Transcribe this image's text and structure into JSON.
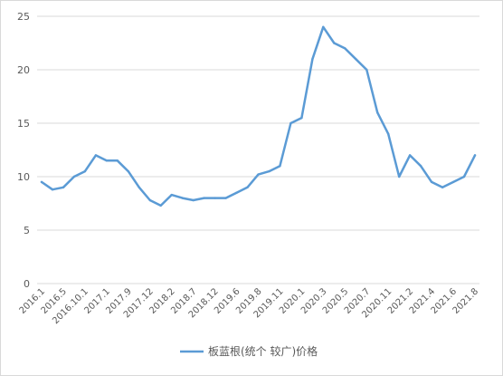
{
  "chart_data": {
    "type": "line",
    "title": "",
    "xlabel": "",
    "ylabel": "",
    "ylim": [
      0,
      25
    ],
    "yticks": [
      0,
      5,
      10,
      15,
      20,
      25
    ],
    "grid": true,
    "legend_position": "bottom",
    "series_color": "#5b9bd5",
    "x": [
      "2016.1",
      "",
      "2016.5",
      "",
      "2016.10.1",
      "",
      "2017.1",
      "",
      "2017.9",
      "",
      "2017.12",
      "",
      "2018.2",
      "",
      "2018.7",
      "",
      "2018.12",
      "",
      "2019.6",
      "",
      "2019.8",
      "",
      "2019.11",
      "",
      "2020.1",
      "",
      "2020.3",
      "",
      "2020.5",
      "",
      "2020.7",
      "",
      "2020.11",
      "",
      "2021.2",
      "",
      "2021.4",
      "",
      "2021.6",
      "",
      "2021.8"
    ],
    "series": [
      {
        "name": "板蓝根(统个 较广)价格",
        "values": [
          9.5,
          8.8,
          9.0,
          10.0,
          10.5,
          12.0,
          11.5,
          11.5,
          10.5,
          9.0,
          7.8,
          7.3,
          8.3,
          8.0,
          7.8,
          8.0,
          8.0,
          8.0,
          8.5,
          9.0,
          10.2,
          10.5,
          11.0,
          15.0,
          15.5,
          21.0,
          24.0,
          22.5,
          22.0,
          21.0,
          20.0,
          16.0,
          14.0,
          10.0,
          12.0,
          11.0,
          9.5,
          9.0,
          9.5,
          10.0,
          12.0
        ]
      }
    ]
  }
}
